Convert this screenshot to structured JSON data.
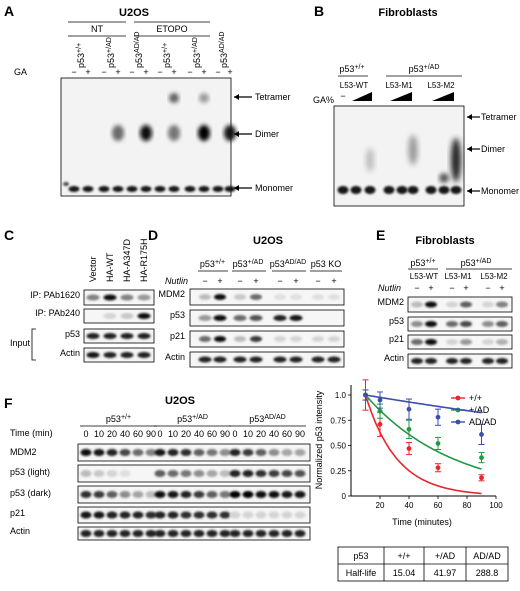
{
  "panel_a": {
    "letter": "A",
    "title": "U2OS",
    "groups": [
      "NT",
      "ETOPO"
    ],
    "genotypes": [
      "p53+/+",
      "p53+/AD",
      "p53AD/AD",
      "p53+/+",
      "p53+/AD",
      "p53AD/AD"
    ],
    "row_label": "GA",
    "signs": [
      "−",
      "+",
      "−",
      "+",
      "−",
      "+",
      "−",
      "+",
      "−",
      "+",
      "−",
      "+"
    ],
    "bands": [
      "Tetramer",
      "Dimer",
      "Monomer"
    ]
  },
  "panel_b": {
    "letter": "B",
    "title": "Fibroblasts",
    "genotypes": [
      "p53+/+",
      "p53+/AD"
    ],
    "lines": [
      "L53-WT",
      "L53-M1",
      "L53-M2"
    ],
    "row_label": "GA%",
    "first_sign": "−",
    "bands": [
      "Tetramer",
      "Dimer",
      "Monomer"
    ]
  },
  "panel_c": {
    "letter": "C",
    "columns": [
      "Vector",
      "HA-WT",
      "HA-A347D",
      "HA-R175H"
    ],
    "rows": [
      "IP: PAb1620",
      "IP: PAb240",
      "p53",
      "Actin"
    ],
    "group_label": "Input"
  },
  "panel_d": {
    "letter": "D",
    "title": "U2OS",
    "genotypes": [
      "p53+/+",
      "p53+/AD",
      "p53AD/AD",
      "p53 KO"
    ],
    "treatment": "Nutlin",
    "signs": [
      "−",
      "+",
      "−",
      "+",
      "−",
      "+",
      "−",
      "+"
    ],
    "rows": [
      "MDM2",
      "p53",
      "p21",
      "Actin"
    ]
  },
  "panel_e": {
    "letter": "E",
    "title": "Fibroblasts",
    "genotypes": [
      "p53+/+",
      "p53+/AD"
    ],
    "lines": [
      "L53-WT",
      "L53-M1",
      "L53-M2"
    ],
    "treatment": "Nutlin",
    "signs": [
      "−",
      "+",
      "−",
      "+",
      "−",
      "+"
    ],
    "rows": [
      "MDM2",
      "p53",
      "p21",
      "Actin"
    ]
  },
  "panel_f": {
    "letter": "F",
    "title": "U2OS",
    "genotypes": [
      "p53+/+",
      "p53+/AD",
      "p53AD/AD"
    ],
    "time_label": "Time (min)",
    "times": [
      "0",
      "10",
      "20",
      "40",
      "60",
      "90"
    ],
    "rows": [
      "MDM2",
      "p53 (light)",
      "p53 (dark)",
      "p21",
      "Actin"
    ]
  },
  "chart_data": {
    "type": "line",
    "xlabel": "Time (minutes)",
    "ylabel": "Normalized p53 intensity",
    "xlim": [
      0,
      100
    ],
    "ylim": [
      0,
      1.0
    ],
    "xticks": [
      "20",
      "40",
      "60",
      "80",
      "100"
    ],
    "yticks": [
      "0",
      "0.25",
      "0.50",
      "0.75",
      "1.0"
    ],
    "legend_position": "top-right",
    "series": [
      {
        "name": "+/+",
        "color": "#e8262b",
        "x": [
          10,
          20,
          40,
          60,
          90
        ],
        "y": [
          1.0,
          0.71,
          0.47,
          0.28,
          0.18
        ],
        "err": [
          0.15,
          0.12,
          0.06,
          0.04,
          0.03
        ]
      },
      {
        "name": "+/AD",
        "color": "#1e9a44",
        "x": [
          10,
          20,
          40,
          60,
          90
        ],
        "y": [
          1.0,
          0.84,
          0.66,
          0.52,
          0.38
        ],
        "err": [
          0.05,
          0.07,
          0.09,
          0.06,
          0.05
        ]
      },
      {
        "name": "AD/AD",
        "color": "#3b4fa8",
        "x": [
          10,
          20,
          40,
          60,
          90
        ],
        "y": [
          1.0,
          0.95,
          0.86,
          0.78,
          0.61
        ],
        "err": [
          0.05,
          0.08,
          0.1,
          0.08,
          0.1
        ]
      }
    ],
    "table": {
      "header": [
        "p53",
        "+/+",
        "+/AD",
        "AD/AD"
      ],
      "row_label": "Half-life",
      "values": [
        "15.04",
        "41.97",
        "288.8"
      ]
    }
  }
}
